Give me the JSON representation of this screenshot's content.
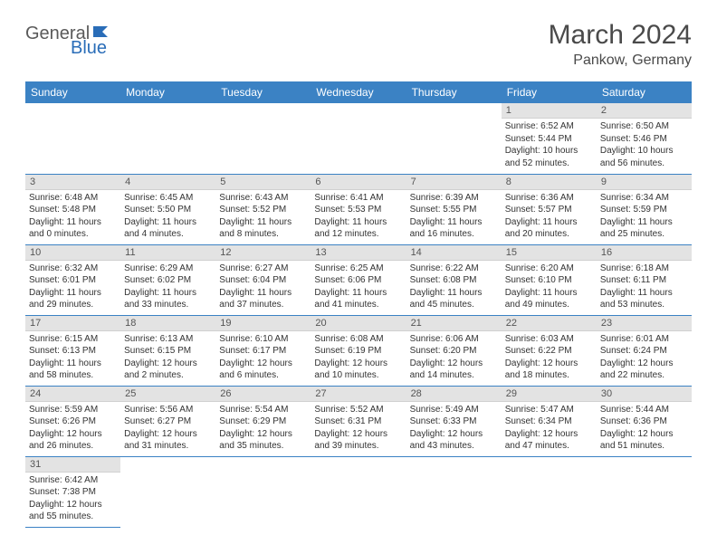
{
  "brand": {
    "part1": "General",
    "part2": "Blue"
  },
  "title": "March 2024",
  "location": "Pankow, Germany",
  "weekday_headers": [
    "Sunday",
    "Monday",
    "Tuesday",
    "Wednesday",
    "Thursday",
    "Friday",
    "Saturday"
  ],
  "colors": {
    "header_bg": "#3b82c4",
    "header_text": "#ffffff",
    "daynum_bg": "#e3e3e3",
    "cell_border": "#3b82c4",
    "logo_gray": "#5a5a5a",
    "logo_blue": "#2a6db8"
  },
  "days": [
    {
      "n": 1,
      "sunrise": "6:52 AM",
      "sunset": "5:44 PM",
      "daylight": "10 hours and 52 minutes."
    },
    {
      "n": 2,
      "sunrise": "6:50 AM",
      "sunset": "5:46 PM",
      "daylight": "10 hours and 56 minutes."
    },
    {
      "n": 3,
      "sunrise": "6:48 AM",
      "sunset": "5:48 PM",
      "daylight": "11 hours and 0 minutes."
    },
    {
      "n": 4,
      "sunrise": "6:45 AM",
      "sunset": "5:50 PM",
      "daylight": "11 hours and 4 minutes."
    },
    {
      "n": 5,
      "sunrise": "6:43 AM",
      "sunset": "5:52 PM",
      "daylight": "11 hours and 8 minutes."
    },
    {
      "n": 6,
      "sunrise": "6:41 AM",
      "sunset": "5:53 PM",
      "daylight": "11 hours and 12 minutes."
    },
    {
      "n": 7,
      "sunrise": "6:39 AM",
      "sunset": "5:55 PM",
      "daylight": "11 hours and 16 minutes."
    },
    {
      "n": 8,
      "sunrise": "6:36 AM",
      "sunset": "5:57 PM",
      "daylight": "11 hours and 20 minutes."
    },
    {
      "n": 9,
      "sunrise": "6:34 AM",
      "sunset": "5:59 PM",
      "daylight": "11 hours and 25 minutes."
    },
    {
      "n": 10,
      "sunrise": "6:32 AM",
      "sunset": "6:01 PM",
      "daylight": "11 hours and 29 minutes."
    },
    {
      "n": 11,
      "sunrise": "6:29 AM",
      "sunset": "6:02 PM",
      "daylight": "11 hours and 33 minutes."
    },
    {
      "n": 12,
      "sunrise": "6:27 AM",
      "sunset": "6:04 PM",
      "daylight": "11 hours and 37 minutes."
    },
    {
      "n": 13,
      "sunrise": "6:25 AM",
      "sunset": "6:06 PM",
      "daylight": "11 hours and 41 minutes."
    },
    {
      "n": 14,
      "sunrise": "6:22 AM",
      "sunset": "6:08 PM",
      "daylight": "11 hours and 45 minutes."
    },
    {
      "n": 15,
      "sunrise": "6:20 AM",
      "sunset": "6:10 PM",
      "daylight": "11 hours and 49 minutes."
    },
    {
      "n": 16,
      "sunrise": "6:18 AM",
      "sunset": "6:11 PM",
      "daylight": "11 hours and 53 minutes."
    },
    {
      "n": 17,
      "sunrise": "6:15 AM",
      "sunset": "6:13 PM",
      "daylight": "11 hours and 58 minutes."
    },
    {
      "n": 18,
      "sunrise": "6:13 AM",
      "sunset": "6:15 PM",
      "daylight": "12 hours and 2 minutes."
    },
    {
      "n": 19,
      "sunrise": "6:10 AM",
      "sunset": "6:17 PM",
      "daylight": "12 hours and 6 minutes."
    },
    {
      "n": 20,
      "sunrise": "6:08 AM",
      "sunset": "6:19 PM",
      "daylight": "12 hours and 10 minutes."
    },
    {
      "n": 21,
      "sunrise": "6:06 AM",
      "sunset": "6:20 PM",
      "daylight": "12 hours and 14 minutes."
    },
    {
      "n": 22,
      "sunrise": "6:03 AM",
      "sunset": "6:22 PM",
      "daylight": "12 hours and 18 minutes."
    },
    {
      "n": 23,
      "sunrise": "6:01 AM",
      "sunset": "6:24 PM",
      "daylight": "12 hours and 22 minutes."
    },
    {
      "n": 24,
      "sunrise": "5:59 AM",
      "sunset": "6:26 PM",
      "daylight": "12 hours and 26 minutes."
    },
    {
      "n": 25,
      "sunrise": "5:56 AM",
      "sunset": "6:27 PM",
      "daylight": "12 hours and 31 minutes."
    },
    {
      "n": 26,
      "sunrise": "5:54 AM",
      "sunset": "6:29 PM",
      "daylight": "12 hours and 35 minutes."
    },
    {
      "n": 27,
      "sunrise": "5:52 AM",
      "sunset": "6:31 PM",
      "daylight": "12 hours and 39 minutes."
    },
    {
      "n": 28,
      "sunrise": "5:49 AM",
      "sunset": "6:33 PM",
      "daylight": "12 hours and 43 minutes."
    },
    {
      "n": 29,
      "sunrise": "5:47 AM",
      "sunset": "6:34 PM",
      "daylight": "12 hours and 47 minutes."
    },
    {
      "n": 30,
      "sunrise": "5:44 AM",
      "sunset": "6:36 PM",
      "daylight": "12 hours and 51 minutes."
    },
    {
      "n": 31,
      "sunrise": "6:42 AM",
      "sunset": "7:38 PM",
      "daylight": "12 hours and 55 minutes."
    }
  ],
  "first_weekday_index": 5,
  "labels": {
    "sunrise": "Sunrise:",
    "sunset": "Sunset:",
    "daylight": "Daylight:"
  }
}
